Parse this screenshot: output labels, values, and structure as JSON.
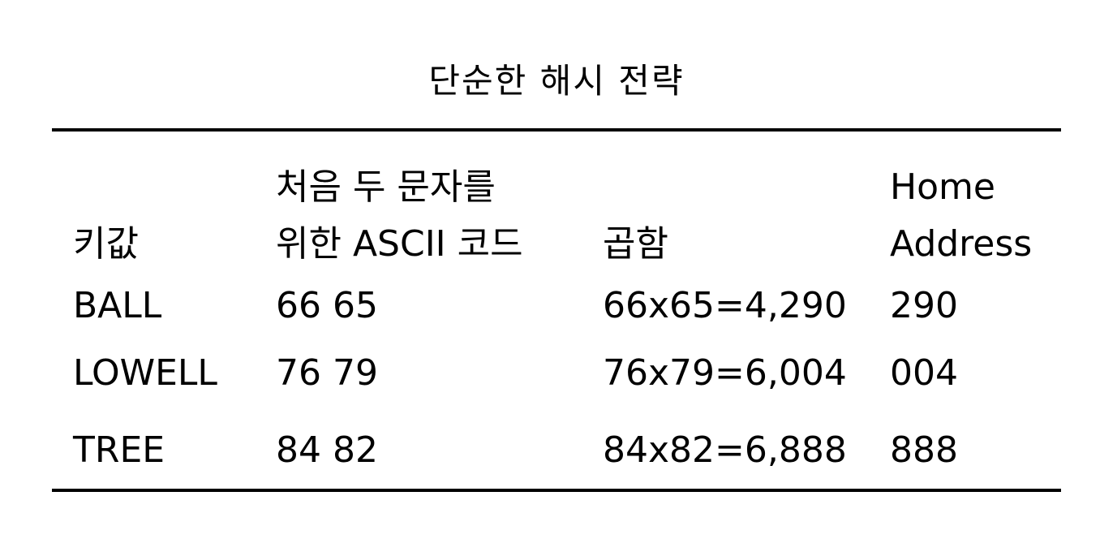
{
  "title": "단순한 해시 전략",
  "table": {
    "headers": {
      "key": "키값",
      "ascii_line1": "처음 두 문자를",
      "ascii_line2": "위한 ASCII 코드",
      "product": "곱함",
      "home_line1": "Home",
      "home_line2": "Address"
    },
    "rows": [
      {
        "key": "BALL",
        "ascii": "66 65",
        "product": "66x65=4,290",
        "home": "290"
      },
      {
        "key": "LOWELL",
        "ascii": "76 79",
        "product": "76x79=6,004",
        "home": "004"
      },
      {
        "key": "TREE",
        "ascii": "84 82",
        "product": "84x82=6,888",
        "home": "888"
      }
    ]
  }
}
